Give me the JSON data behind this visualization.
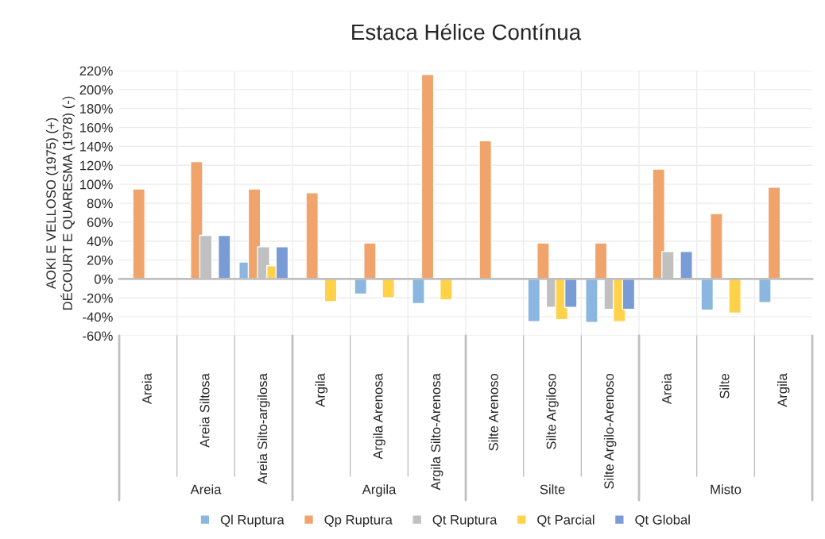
{
  "chart_data": {
    "type": "bar",
    "title": "Estaca Hélice Contínua",
    "ylabel": "AOKI E VELLOSO (1975) (+)\nDÉCOURT E QUARESMA (1978) (-)",
    "categories": [
      "Areia",
      "Areia Siltosa",
      "Areia Silto-argilosa",
      "Argila",
      "Argila Arenosa",
      "Argila Silto-Arenosa",
      "Silte Arenoso",
      "Silte Argiloso",
      "Silte Argilo-Arenoso",
      "Areia",
      "Silte",
      "Argila"
    ],
    "annotations": [
      "Areia",
      "Argila",
      "Silte",
      "Misto"
    ],
    "series": [
      {
        "name": "Ql Ruptura",
        "color": "#8ab6e0",
        "values": [
          null,
          null,
          18,
          null,
          -16,
          -26,
          null,
          -45,
          -46,
          null,
          -33,
          -25
        ]
      },
      {
        "name": "Qp Ruptura",
        "color": "#f0a46c",
        "values": [
          95,
          124,
          95,
          91,
          38,
          216,
          146,
          38,
          38,
          116,
          69,
          97
        ]
      },
      {
        "name": "Qt Ruptura",
        "color": "#c0c0c0",
        "values": [
          null,
          46,
          34,
          null,
          null,
          null,
          null,
          -30,
          -32,
          29,
          null,
          null
        ]
      },
      {
        "name": "Qt Parcial",
        "color": "#ffd24a",
        "values": [
          null,
          null,
          14,
          -24,
          -20,
          -22,
          null,
          -43,
          -45,
          null,
          -36,
          null
        ]
      },
      {
        "name": "Qt Global",
        "color": "#7a9cd6",
        "values": [
          null,
          46,
          34,
          null,
          null,
          null,
          null,
          -30,
          -32,
          29,
          null,
          null
        ]
      }
    ],
    "ylim": [
      -60,
      220
    ],
    "yticks": [
      {
        "value": -60,
        "label": "-60%"
      },
      {
        "value": -40,
        "label": "-40%"
      },
      {
        "value": -20,
        "label": "-20%"
      },
      {
        "value": 0,
        "label": "0%"
      },
      {
        "value": 20,
        "label": "20%"
      },
      {
        "value": 40,
        "label": "40%"
      },
      {
        "value": 60,
        "label": "60%"
      },
      {
        "value": 80,
        "label": "80%"
      },
      {
        "value": 100,
        "label": "100%"
      },
      {
        "value": 120,
        "label": "120%"
      },
      {
        "value": 140,
        "label": "140%"
      },
      {
        "value": 160,
        "label": "160%"
      },
      {
        "value": 180,
        "label": "180%"
      },
      {
        "value": 200,
        "label": "200%"
      },
      {
        "value": 220,
        "label": "220%"
      }
    ],
    "grid": true,
    "legend": "bottom"
  }
}
